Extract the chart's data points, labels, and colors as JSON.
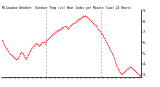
{
  "title": "Milwaukee Weather  Outdoor Temp (vs) Heat Index per Minute (Last 24 Hours)",
  "line_color": "#ff0000",
  "background_color": "#ffffff",
  "vline_color": "#aaaaaa",
  "ylim": [
    28,
    90
  ],
  "ytick_values": [
    30,
    40,
    50,
    60,
    70,
    80,
    90
  ],
  "ytick_labels": [
    "3.",
    "4.",
    "5.",
    "6.",
    "7.",
    "8.",
    "9."
  ],
  "vlines_x": [
    40,
    90
  ],
  "y_values": [
    62,
    61,
    59,
    57,
    55,
    54,
    52,
    50,
    49,
    48,
    47,
    46,
    45,
    44,
    44,
    45,
    47,
    49,
    51,
    50,
    48,
    46,
    44,
    46,
    48,
    50,
    52,
    54,
    55,
    57,
    58,
    59,
    59,
    58,
    57,
    58,
    59,
    60,
    60,
    59,
    60,
    62,
    63,
    64,
    65,
    66,
    67,
    68,
    69,
    70,
    71,
    71,
    72,
    72,
    73,
    74,
    74,
    75,
    75,
    74,
    73,
    74,
    75,
    76,
    77,
    78,
    78,
    79,
    80,
    81,
    82,
    82,
    83,
    84,
    85,
    84,
    85,
    84,
    83,
    82,
    81,
    80,
    79,
    78,
    77,
    76,
    75,
    73,
    72,
    71,
    69,
    68,
    66,
    64,
    62,
    60,
    58,
    56,
    54,
    52,
    50,
    48,
    45,
    42,
    39,
    36,
    34,
    32,
    31,
    30,
    31,
    32,
    33,
    34,
    35,
    36,
    37,
    37,
    36,
    35,
    34,
    33,
    32,
    31,
    30,
    29,
    28
  ]
}
